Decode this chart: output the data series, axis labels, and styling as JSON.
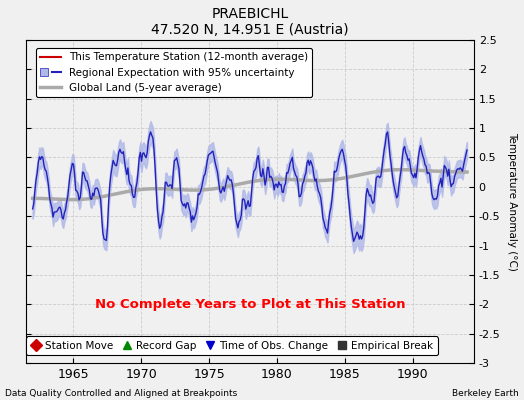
{
  "title": "PRAEBICHL",
  "subtitle": "47.520 N, 14.951 E (Austria)",
  "xlabel_left": "Data Quality Controlled and Aligned at Breakpoints",
  "xlabel_right": "Berkeley Earth",
  "ylabel": "Temperature Anomaly (°C)",
  "xlim": [
    1961.5,
    1994.5
  ],
  "ylim": [
    -3,
    2.5
  ],
  "yticks": [
    -3,
    -2.5,
    -2,
    -1.5,
    -1,
    -0.5,
    0,
    0.5,
    1,
    1.5,
    2,
    2.5
  ],
  "xticks": [
    1965,
    1970,
    1975,
    1980,
    1985,
    1990
  ],
  "no_data_text": "No Complete Years to Plot at This Station",
  "background_color": "#f0f0f0",
  "plot_bg_color": "#f0f0f0",
  "regional_color": "#2222bb",
  "regional_fill_color": "#b0b8e8",
  "station_color": "#cc0000",
  "global_color": "#aaaaaa",
  "legend_items": [
    {
      "label": "This Temperature Station (12-month average)",
      "color": "#cc0000",
      "lw": 1.5
    },
    {
      "label": "Regional Expectation with 95% uncertainty",
      "color": "#2222bb",
      "lw": 1.5
    },
    {
      "label": "Global Land (5-year average)",
      "color": "#aaaaaa",
      "lw": 2
    }
  ],
  "bottom_legend": [
    {
      "label": "Station Move",
      "marker": "D",
      "color": "#cc0000"
    },
    {
      "label": "Record Gap",
      "marker": "^",
      "color": "#008800"
    },
    {
      "label": "Time of Obs. Change",
      "marker": "v",
      "color": "#0000cc"
    },
    {
      "label": "Empirical Break",
      "marker": "s",
      "color": "#333333"
    }
  ],
  "seed": 17
}
